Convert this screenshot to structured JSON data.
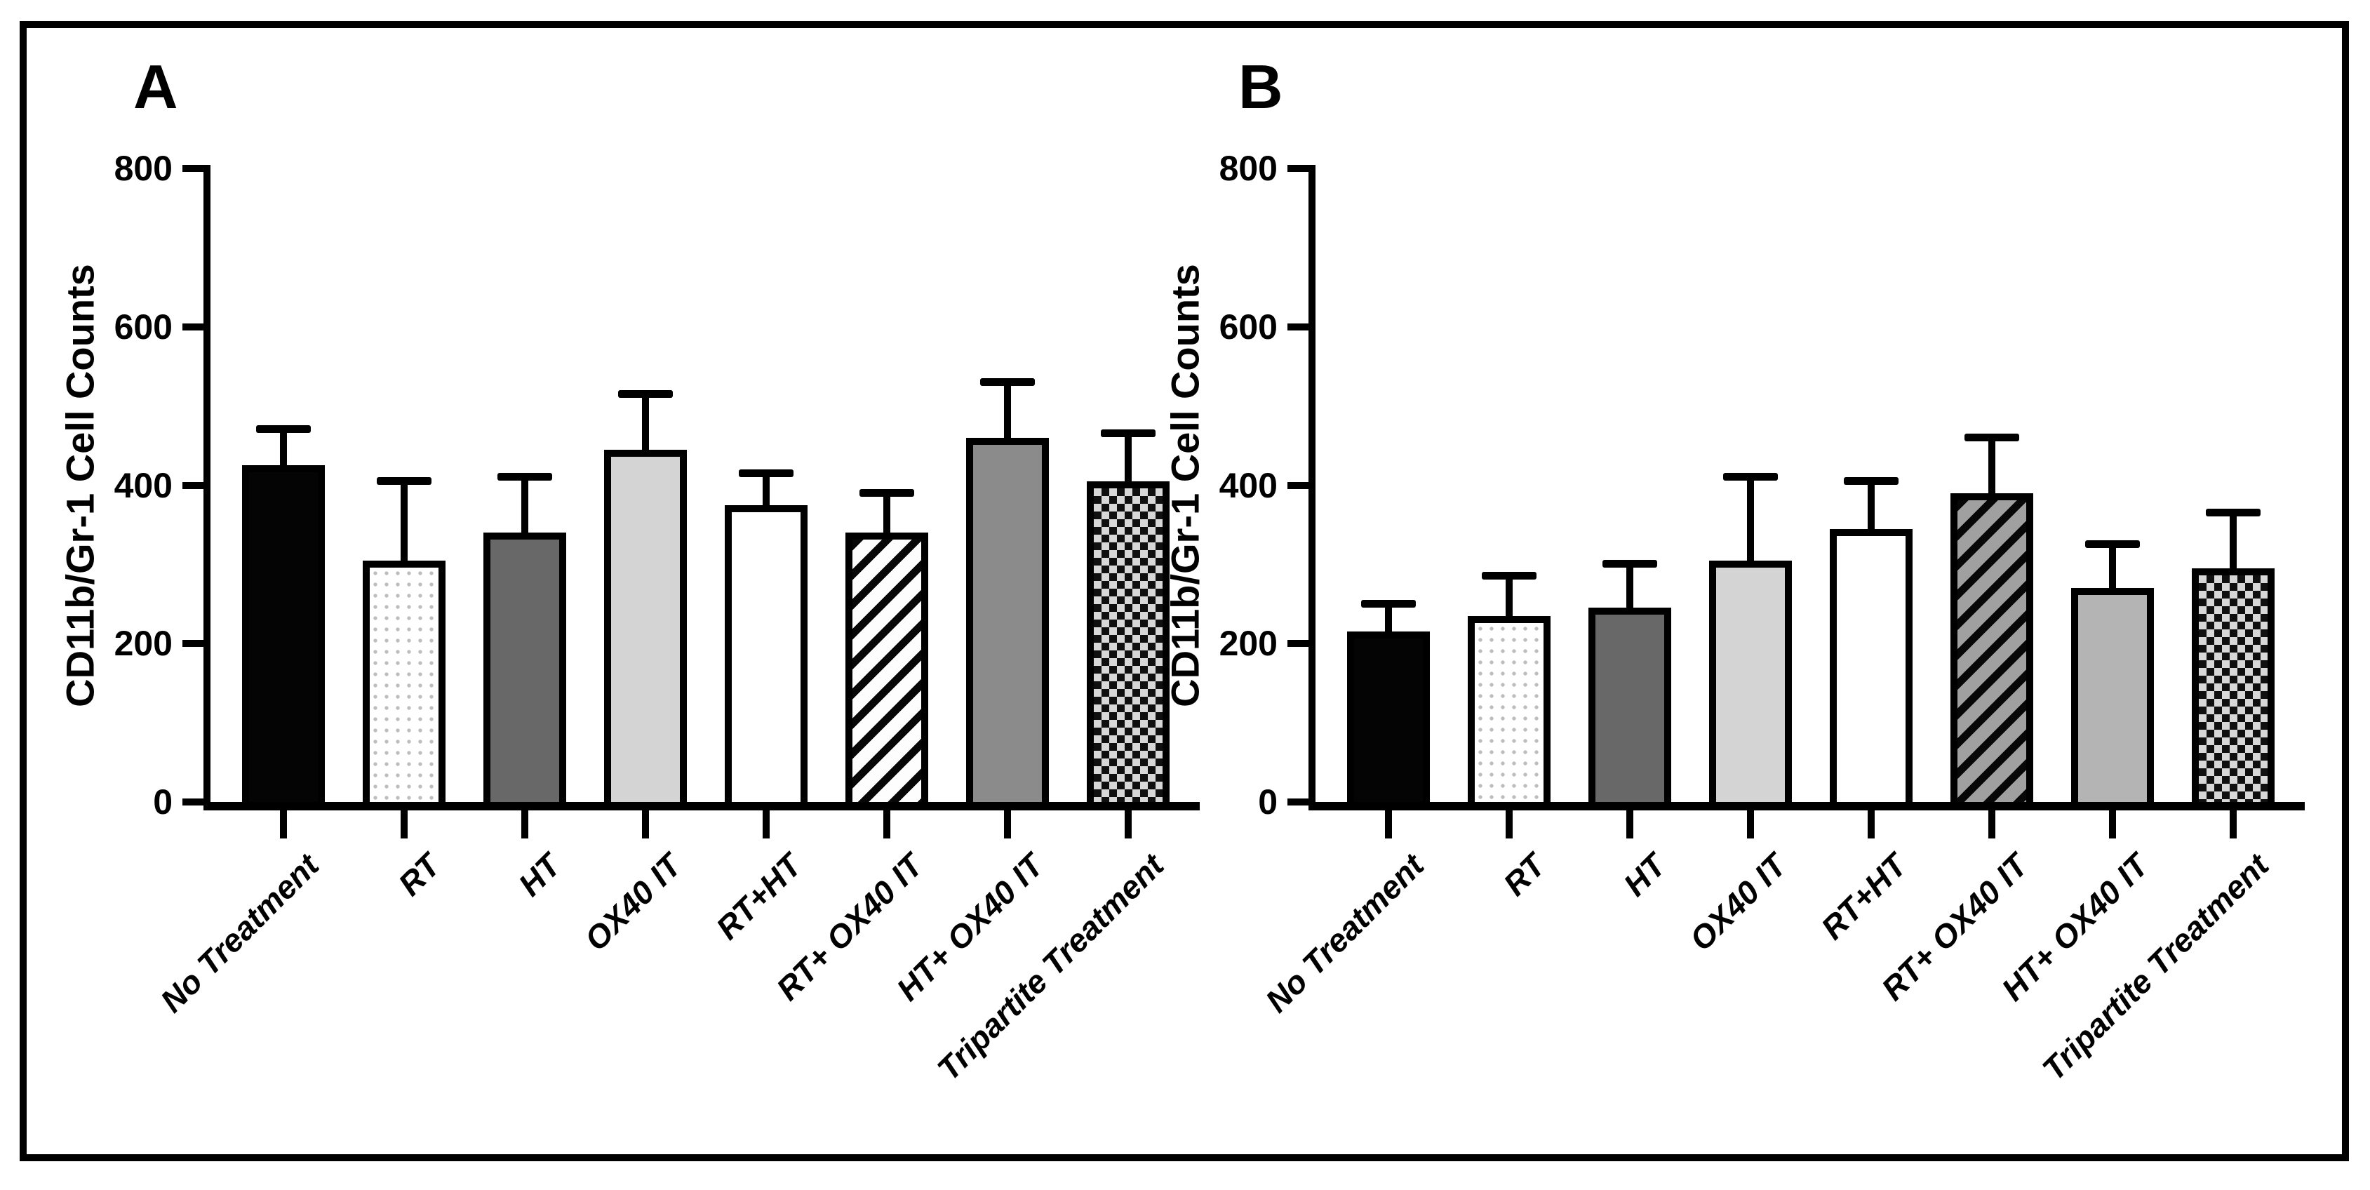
{
  "figure": {
    "background": "#ffffff",
    "border_color": "#000000",
    "panels": [
      "A",
      "B"
    ]
  },
  "palette": {
    "black": "#040404",
    "dark_gray": "#686868",
    "light_gray": "#d4d4d4",
    "medium_gray": "#8b8b8b",
    "light_medium_gray": "#b4b4b4",
    "hatch_gray_background": "#a0a0a0",
    "checker_light": "#d7d7d7",
    "dot_color": "#bdbdbd",
    "axis_color": "#000000"
  },
  "chart_data": [
    {
      "type": "bar",
      "panel_label": "A",
      "title": "",
      "xlabel": "",
      "ylabel": "CD11b/Gr-1 Cell Counts",
      "ylim": [
        0,
        800
      ],
      "yticks": [
        0,
        200,
        400,
        600,
        800
      ],
      "grid": false,
      "legend": false,
      "error_bars": "upper SD whiskers with caps",
      "categories": [
        "No Treatment",
        "RT",
        "HT",
        "OX40 IT",
        "RT+HT",
        "RT+ OX40 IT",
        "HT+ OX40 IT",
        "Tripartite Treatment"
      ],
      "values": [
        425,
        305,
        340,
        445,
        375,
        340,
        460,
        405
      ],
      "errors_up": [
        45,
        100,
        70,
        70,
        40,
        50,
        70,
        60
      ],
      "bar_fills": [
        "solid-black",
        "dotted-white",
        "solid-dark-gray",
        "solid-light-gray",
        "solid-white",
        "diagonal-hatch-white",
        "solid-medium-gray",
        "checkerboard"
      ]
    },
    {
      "type": "bar",
      "panel_label": "B",
      "title": "",
      "xlabel": "",
      "ylabel": "CD11b/Gr-1 Cell Counts",
      "ylim": [
        0,
        800
      ],
      "yticks": [
        0,
        200,
        400,
        600,
        800
      ],
      "grid": false,
      "legend": false,
      "error_bars": "upper SD whiskers with caps",
      "categories": [
        "No Treatment",
        "RT",
        "HT",
        "OX40 IT",
        "RT+HT",
        "RT+ OX40 IT",
        "HT+ OX40 IT",
        "Tripartite Treatment"
      ],
      "values": [
        215,
        235,
        245,
        305,
        345,
        390,
        270,
        295
      ],
      "errors_up": [
        35,
        50,
        55,
        105,
        60,
        70,
        55,
        70
      ],
      "bar_fills": [
        "solid-black",
        "dotted-white",
        "solid-dark-gray",
        "solid-light-gray",
        "solid-white",
        "diagonal-hatch-gray",
        "solid-light-medium-gray",
        "checkerboard"
      ]
    }
  ]
}
